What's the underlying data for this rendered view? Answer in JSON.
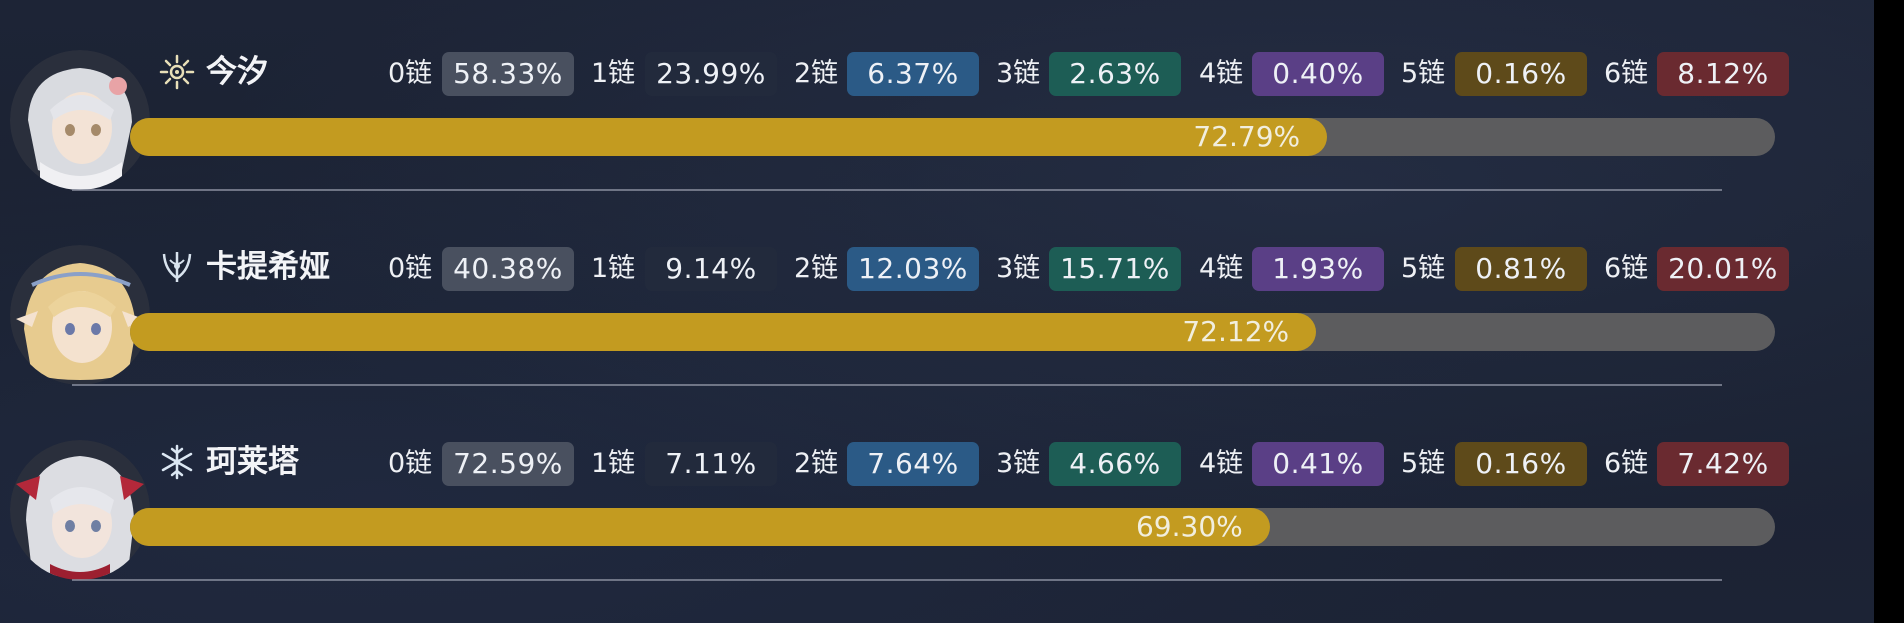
{
  "colors": {
    "background": "#1b2232",
    "bar_track": "#5c5c5e",
    "bar_fill": "#c39b20",
    "chain_badge_colors": [
      "#49505f",
      "#222a3c",
      "#2b5a86",
      "#1d5d55",
      "#5a3f86",
      "#5e4a1a",
      "#6a2a30"
    ]
  },
  "characters": [
    {
      "name": "今汐",
      "element_icon": "spectro-sun-icon",
      "chains": [
        {
          "label": "0链",
          "value": "58.33%"
        },
        {
          "label": "1链",
          "value": "23.99%"
        },
        {
          "label": "2链",
          "value": "6.37%"
        },
        {
          "label": "3链",
          "value": "2.63%"
        },
        {
          "label": "4链",
          "value": "0.40%"
        },
        {
          "label": "5链",
          "value": "0.16%"
        },
        {
          "label": "6链",
          "value": "8.12%"
        }
      ],
      "usage": {
        "value": 72.79,
        "label": "72.79%"
      }
    },
    {
      "name": "卡提希娅",
      "element_icon": "aero-trident-icon",
      "chains": [
        {
          "label": "0链",
          "value": "40.38%"
        },
        {
          "label": "1链",
          "value": "9.14%"
        },
        {
          "label": "2链",
          "value": "12.03%"
        },
        {
          "label": "3链",
          "value": "15.71%"
        },
        {
          "label": "4链",
          "value": "1.93%"
        },
        {
          "label": "5链",
          "value": "0.81%"
        },
        {
          "label": "6链",
          "value": "20.01%"
        }
      ],
      "usage": {
        "value": 72.12,
        "label": "72.12%"
      }
    },
    {
      "name": "珂莱塔",
      "element_icon": "glacio-snowflake-icon",
      "chains": [
        {
          "label": "0链",
          "value": "72.59%"
        },
        {
          "label": "1链",
          "value": "7.11%"
        },
        {
          "label": "2链",
          "value": "7.64%"
        },
        {
          "label": "3链",
          "value": "4.66%"
        },
        {
          "label": "4链",
          "value": "0.41%"
        },
        {
          "label": "5链",
          "value": "0.16%"
        },
        {
          "label": "6链",
          "value": "7.42%"
        }
      ],
      "usage": {
        "value": 69.3,
        "label": "69.30%"
      }
    }
  ]
}
